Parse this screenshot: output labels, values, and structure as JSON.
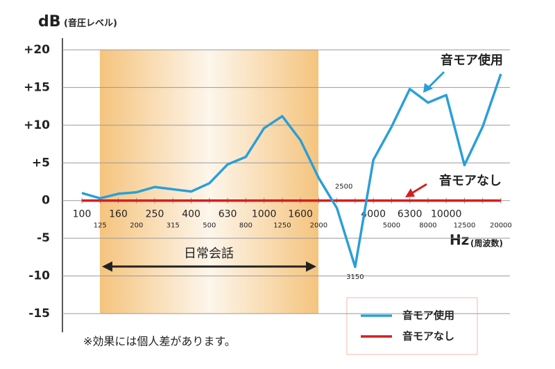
{
  "chart_data": {
    "type": "line",
    "y_axis_label": "dB",
    "y_axis_unit": "(音圧レベル)",
    "x_axis_label": "Hz",
    "x_axis_unit": "(周波数)",
    "categories": [
      "100",
      "125",
      "160",
      "200",
      "250",
      "315",
      "400",
      "500",
      "630",
      "800",
      "1000",
      "1250",
      "1600",
      "2000",
      "2500",
      "3150",
      "4000",
      "5000",
      "6300",
      "8000",
      "10000",
      "12500",
      null,
      "20000"
    ],
    "series": [
      {
        "name": "音モア使用",
        "color": "#2a9fd8",
        "values": [
          1,
          0.3,
          0.9,
          1.1,
          1.8,
          1.5,
          1.2,
          2.3,
          4.8,
          5.8,
          9.6,
          11.2,
          8,
          3,
          -1,
          -8.8,
          5.4,
          9.8,
          14.8,
          13,
          14,
          4.7,
          9.8,
          16.8
        ]
      },
      {
        "name": "音モアなし",
        "color": "#d51f1f",
        "values": [
          0,
          0,
          0,
          0,
          0,
          0,
          0,
          0,
          0,
          0,
          0,
          0,
          0,
          0,
          0,
          0,
          0,
          0,
          0,
          0,
          0,
          0,
          0,
          0
        ]
      }
    ],
    "ylim": [
      -15,
      20
    ],
    "yticks": [
      {
        "value": 20,
        "label": "+20"
      },
      {
        "value": 15,
        "label": "+15"
      },
      {
        "value": 10,
        "label": "+10"
      },
      {
        "value": 5,
        "label": "+5"
      },
      0,
      -5,
      -10,
      -15
    ],
    "grid": true,
    "shaded_region_label": "日常会話",
    "footnote": "※効果には個人差があります。"
  }
}
